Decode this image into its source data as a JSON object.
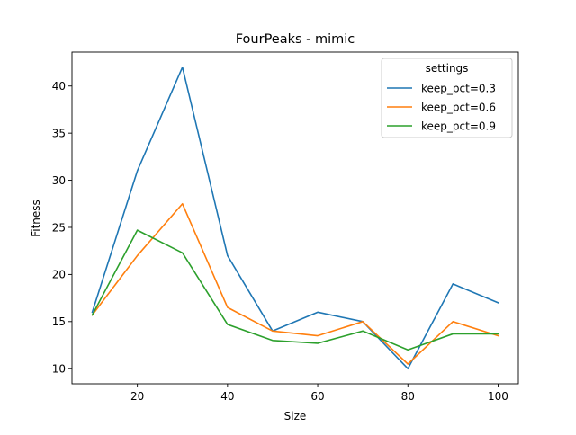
{
  "chart_data": {
    "type": "line",
    "title": "FourPeaks - mimic",
    "xlabel": "Size",
    "ylabel": "Fitness",
    "x": [
      10,
      20,
      30,
      40,
      50,
      60,
      70,
      80,
      90,
      100
    ],
    "xlim": [
      5.5,
      104.5
    ],
    "ylim": [
      8.4,
      43.6
    ],
    "xticks": [
      20,
      40,
      60,
      80,
      100
    ],
    "yticks": [
      10,
      15,
      20,
      25,
      30,
      35,
      40
    ],
    "grid": false,
    "legend": {
      "title": "settings",
      "placement": "top-right"
    },
    "series": [
      {
        "name": "keep_pct=0.3",
        "color": "#1f77b4",
        "values": [
          16.0,
          31.0,
          42.0,
          22.0,
          14.0,
          16.0,
          15.0,
          10.0,
          19.0,
          17.0
        ]
      },
      {
        "name": "keep_pct=0.6",
        "color": "#ff7f0e",
        "values": [
          15.7,
          22.0,
          27.5,
          16.5,
          14.0,
          13.5,
          15.0,
          10.5,
          15.0,
          13.5
        ]
      },
      {
        "name": "keep_pct=0.9",
        "color": "#2ca02c",
        "values": [
          15.7,
          24.7,
          22.3,
          14.7,
          13.0,
          12.7,
          14.0,
          12.0,
          13.7,
          13.7
        ]
      }
    ]
  }
}
